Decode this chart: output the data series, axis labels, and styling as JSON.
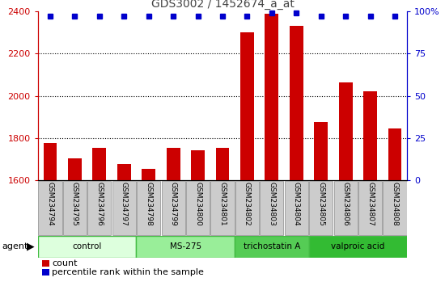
{
  "title": "GDS3002 / 1452674_a_at",
  "samples": [
    "GSM234794",
    "GSM234795",
    "GSM234796",
    "GSM234797",
    "GSM234798",
    "GSM234799",
    "GSM234800",
    "GSM234801",
    "GSM234802",
    "GSM234803",
    "GSM234804",
    "GSM234805",
    "GSM234806",
    "GSM234807",
    "GSM234808"
  ],
  "counts": [
    1775,
    1705,
    1755,
    1675,
    1655,
    1755,
    1743,
    1753,
    2300,
    2390,
    2330,
    1875,
    2065,
    2020,
    1845
  ],
  "percentile": [
    97,
    97,
    97,
    97,
    97,
    97,
    97,
    97,
    97,
    99,
    99,
    97,
    97,
    97,
    97
  ],
  "bar_color": "#cc0000",
  "dot_color": "#0000cc",
  "ylim_left": [
    1600,
    2400
  ],
  "ylim_right": [
    0,
    100
  ],
  "yticks_left": [
    1600,
    1800,
    2000,
    2200,
    2400
  ],
  "yticks_right": [
    0,
    25,
    50,
    75,
    100
  ],
  "groups": [
    {
      "label": "control",
      "start": 0,
      "end": 4,
      "color": "#ddffdd",
      "border": "#44bb44"
    },
    {
      "label": "MS-275",
      "start": 4,
      "end": 8,
      "color": "#99ee99",
      "border": "#44bb44"
    },
    {
      "label": "trichostatin A",
      "start": 8,
      "end": 11,
      "color": "#55cc55",
      "border": "#44bb44"
    },
    {
      "label": "valproic acid",
      "start": 11,
      "end": 15,
      "color": "#33bb33",
      "border": "#44bb44"
    }
  ],
  "agent_label": "agent",
  "legend_count_label": "count",
  "legend_percentile_label": "percentile rank within the sample",
  "bar_width": 0.55,
  "title_color": "#444444",
  "left_axis_color": "#cc0000",
  "right_axis_color": "#0000cc",
  "bg_color": "#ffffff",
  "label_box_color": "#cccccc",
  "label_box_edge": "#999999"
}
